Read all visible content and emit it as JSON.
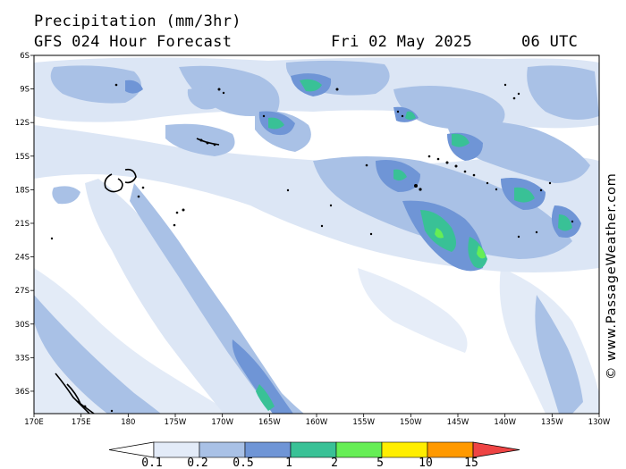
{
  "header": {
    "title": "Precipitation (mm/3hr)",
    "forecast": "GFS 024 Hour Forecast",
    "date": "Fri 02 May 2025",
    "time": "06 UTC"
  },
  "credit": "© www.PassageWeather.com",
  "axes": {
    "lon_labels": [
      "170E",
      "175E",
      "180",
      "175W",
      "170W",
      "165W",
      "160W",
      "155W",
      "150W",
      "145W",
      "140W",
      "135W",
      "130W"
    ],
    "lat_labels": [
      "6S",
      "9S",
      "12S",
      "15S",
      "18S",
      "21S",
      "24S",
      "27S",
      "30S",
      "33S",
      "36S"
    ],
    "lon_range": [
      "170E",
      "130W"
    ],
    "lat_range": [
      "6S",
      "38S"
    ]
  },
  "legend": {
    "labels": [
      "0.1",
      "0.2",
      "0.5",
      "1",
      "2",
      "5",
      "10",
      "15"
    ],
    "colors": [
      "#ffffff",
      "#e3ebf8",
      "#a9c1e6",
      "#6f95d6",
      "#39c196",
      "#66ee55",
      "#ffee00",
      "#ff9900",
      "#ee4444"
    ]
  },
  "colors": {
    "light_rain": "#dce6f5",
    "moderate_rain": "#a9c1e6",
    "heavy_rain": "#6f95d6",
    "very_heavy_rain": "#39c196",
    "extreme_rain": "#66ee55",
    "land": "#000000"
  }
}
